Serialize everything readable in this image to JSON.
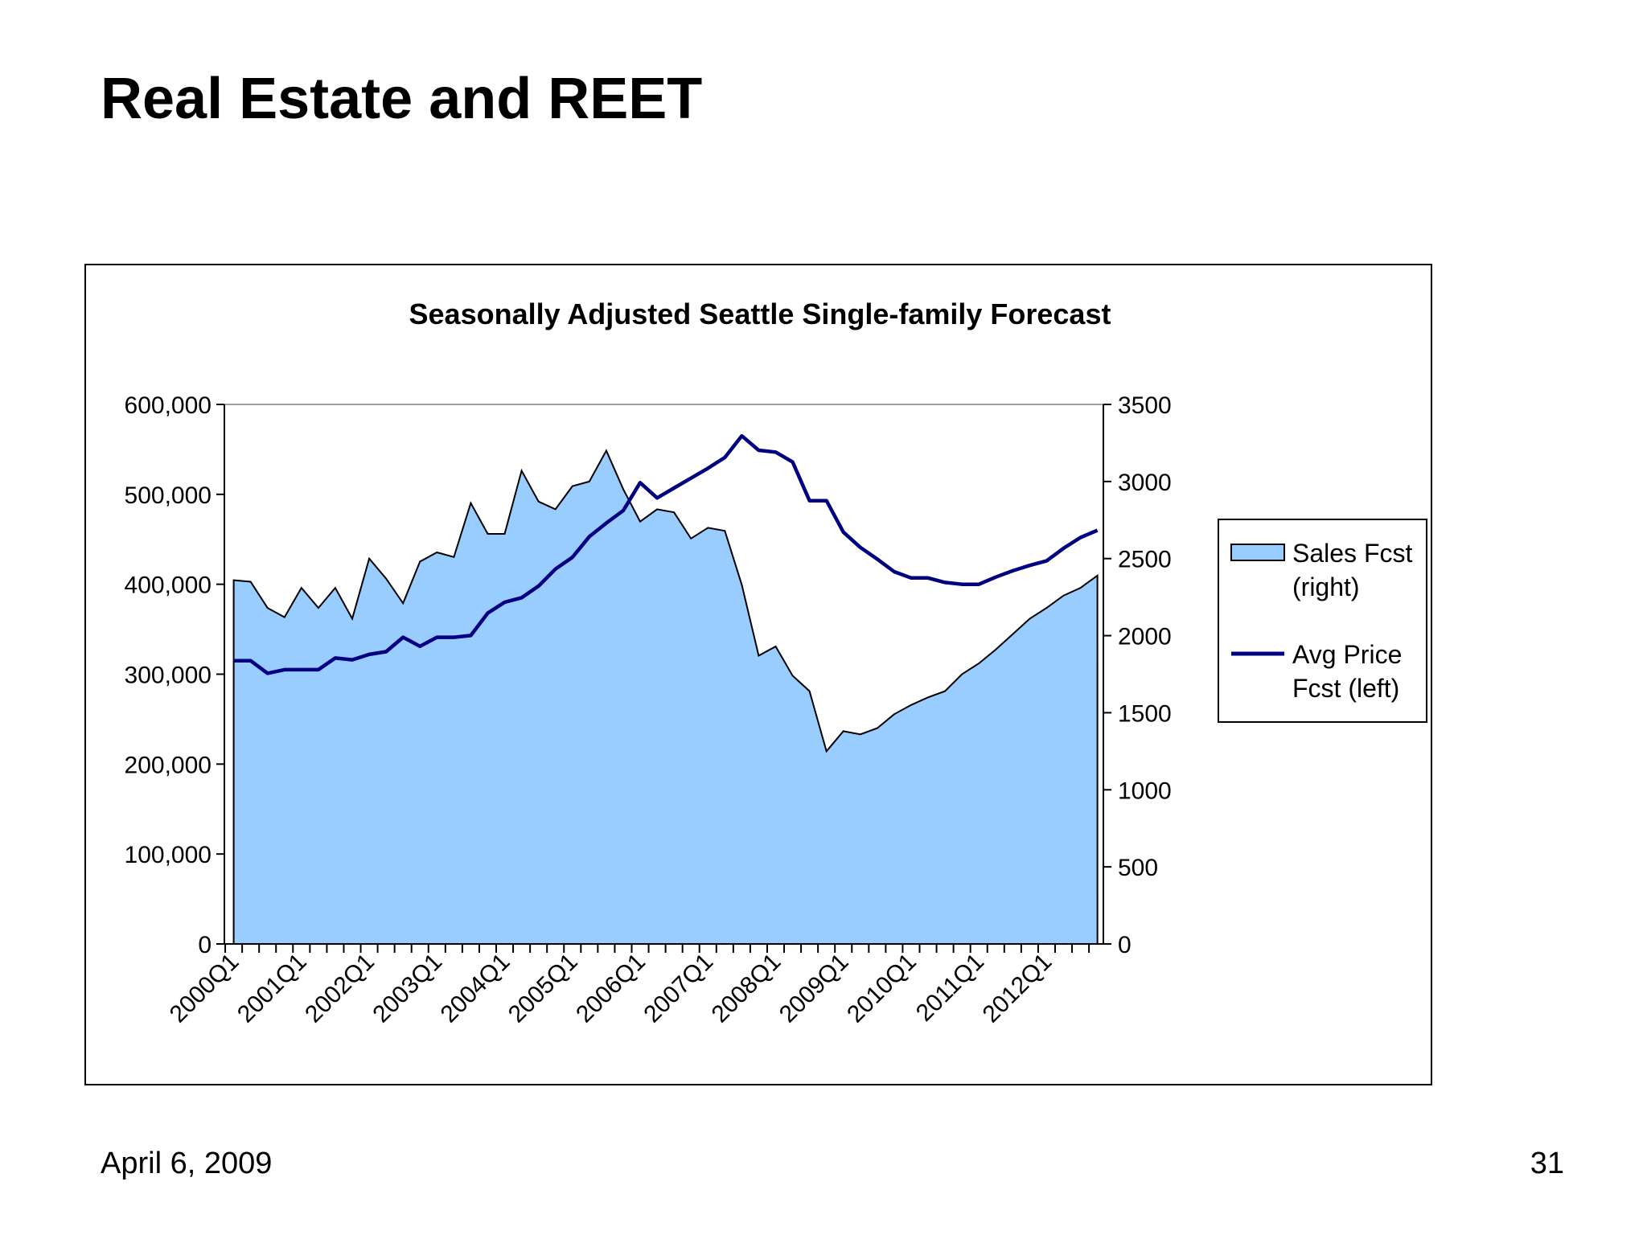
{
  "slide": {
    "title": "Real Estate and REET",
    "footer_date": "April 6, 2009",
    "page_number": "31"
  },
  "colors": {
    "sales_fill": "#99ccff",
    "sales_stroke": "#000000",
    "price_line": "#000080",
    "axis": "#000000"
  },
  "chart_data": {
    "type": "area+line",
    "title": "Seasonally Adjusted Seattle Single-family Forecast",
    "categories": [
      "2000Q1",
      "2000Q2",
      "2000Q3",
      "2000Q4",
      "2001Q1",
      "2001Q2",
      "2001Q3",
      "2001Q4",
      "2002Q1",
      "2002Q2",
      "2002Q3",
      "2002Q4",
      "2003Q1",
      "2003Q2",
      "2003Q3",
      "2003Q4",
      "2004Q1",
      "2004Q2",
      "2004Q3",
      "2004Q4",
      "2005Q1",
      "2005Q2",
      "2005Q3",
      "2005Q4",
      "2006Q1",
      "2006Q2",
      "2006Q3",
      "2006Q4",
      "2007Q1",
      "2007Q2",
      "2007Q3",
      "2007Q4",
      "2008Q1",
      "2008Q2",
      "2008Q3",
      "2008Q4",
      "2009Q1",
      "2009Q2",
      "2009Q3",
      "2009Q4",
      "2010Q1",
      "2010Q2",
      "2010Q3",
      "2010Q4",
      "2011Q1",
      "2011Q2",
      "2011Q3",
      "2011Q4",
      "2012Q1",
      "2012Q2",
      "2012Q3",
      "2012Q4"
    ],
    "tick_labels": [
      "2000Q1",
      "2001Q1",
      "2002Q1",
      "2003Q1",
      "2004Q1",
      "2005Q1",
      "2006Q1",
      "2007Q1",
      "2008Q1",
      "2009Q1",
      "2010Q1",
      "2011Q1",
      "2012Q1"
    ],
    "left_axis": {
      "range": [
        0,
        600000
      ],
      "ticks": [
        0,
        100000,
        200000,
        300000,
        400000,
        500000,
        600000
      ],
      "tick_labels": [
        "0",
        "100,000",
        "200,000",
        "300,000",
        "400,000",
        "500,000",
        "600,000"
      ]
    },
    "right_axis": {
      "range": [
        0,
        3500
      ],
      "ticks": [
        0,
        500,
        1000,
        1500,
        2000,
        2500,
        3000,
        3500
      ],
      "tick_labels": [
        "0",
        "500",
        "1000",
        "1500",
        "2000",
        "2500",
        "3000",
        "3500"
      ]
    },
    "series": [
      {
        "name": "Sales Fcst (right)",
        "legend_lines": [
          "Sales Fcst",
          "(right)"
        ],
        "type": "area",
        "axis": "right",
        "values": [
          2360,
          2350,
          2180,
          2120,
          2310,
          2180,
          2310,
          2110,
          2500,
          2370,
          2210,
          2480,
          2540,
          2510,
          2860,
          2660,
          2660,
          3070,
          2870,
          2820,
          2970,
          3000,
          3200,
          2950,
          2740,
          2820,
          2800,
          2630,
          2700,
          2680,
          2330,
          1870,
          1930,
          1740,
          1640,
          1250,
          1380,
          1360,
          1400,
          1490,
          1550,
          1600,
          1640,
          1750,
          1820,
          1910,
          2010,
          2110,
          2180,
          2260,
          2310,
          2390
        ]
      },
      {
        "name": "Avg Price Fcst (left)",
        "legend_lines": [
          "Avg Price",
          "Fcst (left)"
        ],
        "type": "line",
        "axis": "left",
        "values": [
          315000,
          315000,
          301000,
          305000,
          305000,
          305000,
          318000,
          316000,
          322000,
          325000,
          341000,
          331000,
          341000,
          341000,
          343000,
          368000,
          380000,
          385000,
          398000,
          417000,
          430000,
          453000,
          468000,
          482000,
          513000,
          496000,
          507000,
          518000,
          529000,
          541000,
          565000,
          549000,
          547000,
          536000,
          493000,
          493000,
          458000,
          441000,
          428000,
          414000,
          407000,
          407000,
          402000,
          400000,
          400000,
          408000,
          415000,
          421000,
          426000,
          440000,
          452000,
          460000
        ]
      }
    ],
    "legend_position": "right"
  }
}
